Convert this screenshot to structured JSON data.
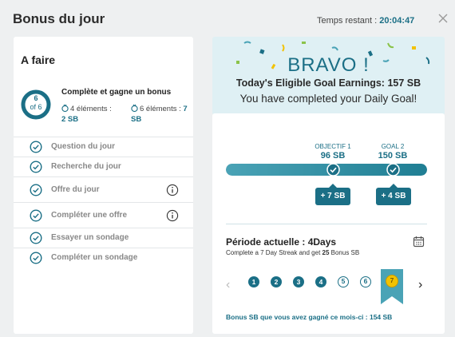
{
  "header": {
    "title": "Bonus du jour",
    "timer_label": "Temps restant : ",
    "timer_value": "20:04:47"
  },
  "todo": {
    "heading": "A faire",
    "progress_count": "6",
    "progress_total": "of 6",
    "goal_title": "Complète et gagne un bonus",
    "goal_a_text": "4 éléments : ",
    "goal_a_value": "2 SB",
    "goal_b_text": "6 éléments : ",
    "goal_b_value": "7 SB",
    "tasks": [
      {
        "label": "Question du jour",
        "info": false
      },
      {
        "label": "Recherche du jour",
        "info": false
      },
      {
        "label": "Offre du jour",
        "info": true
      },
      {
        "label": "Compléter une offre",
        "info": true
      },
      {
        "label": "Essayer un sondage",
        "info": false
      },
      {
        "label": "Compléter un sondage",
        "info": false
      }
    ]
  },
  "banner": {
    "bravo": "BRAVO !",
    "earnings": "Today's Eligible Goal Earnings: 157 SB",
    "completed": "You have completed your Daily Goal!"
  },
  "goals": {
    "progress": 1.0,
    "objectif_label": "OBJECTIF 1",
    "objectif_value": "96 SB",
    "objectif_bonus": "+ 7 SB",
    "goal2_label": "GOAL 2",
    "goal2_value": "150 SB",
    "goal2_bonus": "+ 4 SB"
  },
  "period": {
    "title": "Période actuelle : 4Days",
    "subtitle_prefix": "Complete a 7 Day Streak and get ",
    "subtitle_bonus": "25",
    "subtitle_suffix": " Bonus SB",
    "days": [
      "1",
      "2",
      "3",
      "4",
      "5",
      "6",
      "7"
    ],
    "completed_days": 4,
    "month_bonus": "Bonus SB que vous avez gagné ce mois-ci : 154 SB"
  },
  "colors": {
    "accent": "#1b6f86",
    "gold": "#f2c200",
    "ribbon": "#4aa3b6"
  }
}
